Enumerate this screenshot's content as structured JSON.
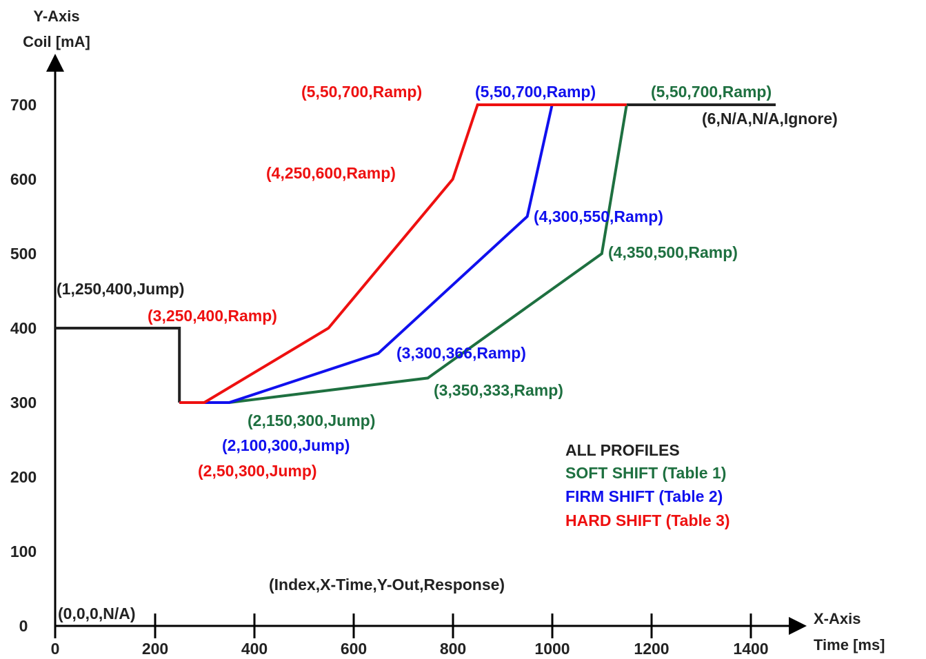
{
  "chart_data": {
    "type": "line",
    "y_axis_title": [
      "Y-Axis",
      "Coil [mA]"
    ],
    "x_axis_title": [
      "X-Axis",
      "Time [ms]"
    ],
    "xlim": [
      0,
      1450
    ],
    "ylim": [
      0,
      700
    ],
    "x_ticks": [
      0,
      200,
      400,
      600,
      800,
      1000,
      1200,
      1400
    ],
    "y_ticks": [
      0,
      100,
      200,
      300,
      400,
      500,
      600,
      700
    ],
    "x_tick_labels": [
      "0",
      "200",
      "400",
      "600",
      "800",
      "1000",
      "1200",
      "1400"
    ],
    "y_tick_labels": [
      "0",
      "100",
      "200",
      "300",
      "400",
      "500",
      "600",
      "700"
    ],
    "format_note": "(Index,X-Time,Y-Out,Response)",
    "legend": {
      "heading": "ALL PROFILES",
      "entries": [
        {
          "label": "SOFT SHIFT (Table 1)",
          "color": "#1e7040"
        },
        {
          "label": "FIRM SHIFT (Table 2)",
          "color": "#1010ee"
        },
        {
          "label": "HARD SHIFT (Table 3)",
          "color": "#ee1010"
        }
      ],
      "heading_color": "#222222"
    },
    "series": [
      {
        "color": "#222222",
        "points": [
          [
            0,
            400
          ],
          [
            250,
            400
          ],
          [
            250,
            300
          ]
        ],
        "tail": [
          [
            1150,
            700
          ],
          [
            1450,
            700
          ]
        ]
      },
      {
        "color": "#1e7040",
        "points": [
          [
            250,
            300
          ],
          [
            350,
            300
          ],
          [
            750,
            333
          ],
          [
            1100,
            500
          ],
          [
            1150,
            700
          ]
        ]
      },
      {
        "color": "#1010ee",
        "points": [
          [
            250,
            300
          ],
          [
            350,
            300
          ],
          [
            650,
            366
          ],
          [
            950,
            550
          ],
          [
            1000,
            700
          ]
        ]
      },
      {
        "color": "#ee1010",
        "points": [
          [
            250,
            300
          ],
          [
            300,
            300
          ],
          [
            550,
            400
          ],
          [
            800,
            600
          ],
          [
            850,
            700
          ],
          [
            1150,
            700
          ]
        ]
      }
    ],
    "point_labels": [
      {
        "text": "(0,0,0,N/A)",
        "color": "#222222"
      },
      {
        "text": "(1,250,400,Jump)",
        "color": "#222222"
      },
      {
        "text": "(3,250,400,Ramp)",
        "color": "#ee1010"
      },
      {
        "text": "(4,250,600,Ramp)",
        "color": "#ee1010"
      },
      {
        "text": "(5,50,700,Ramp)",
        "color": "#ee1010"
      },
      {
        "text": "(5,50,700,Ramp)",
        "color": "#1010ee"
      },
      {
        "text": "(5,50,700,Ramp)",
        "color": "#1e7040"
      },
      {
        "text": "(6,N/A,N/A,Ignore)",
        "color": "#222222"
      },
      {
        "text": "(4,300,550,Ramp)",
        "color": "#1010ee"
      },
      {
        "text": "(4,350,500,Ramp)",
        "color": "#1e7040"
      },
      {
        "text": "(3,300,366,Ramp)",
        "color": "#1010ee"
      },
      {
        "text": "(3,350,333,Ramp)",
        "color": "#1e7040"
      },
      {
        "text": "(2,150,300,Jump)",
        "color": "#1e7040"
      },
      {
        "text": "(2,100,300,Jump)",
        "color": "#1010ee"
      },
      {
        "text": "(2,50,300,Jump)",
        "color": "#ee1010"
      }
    ]
  }
}
